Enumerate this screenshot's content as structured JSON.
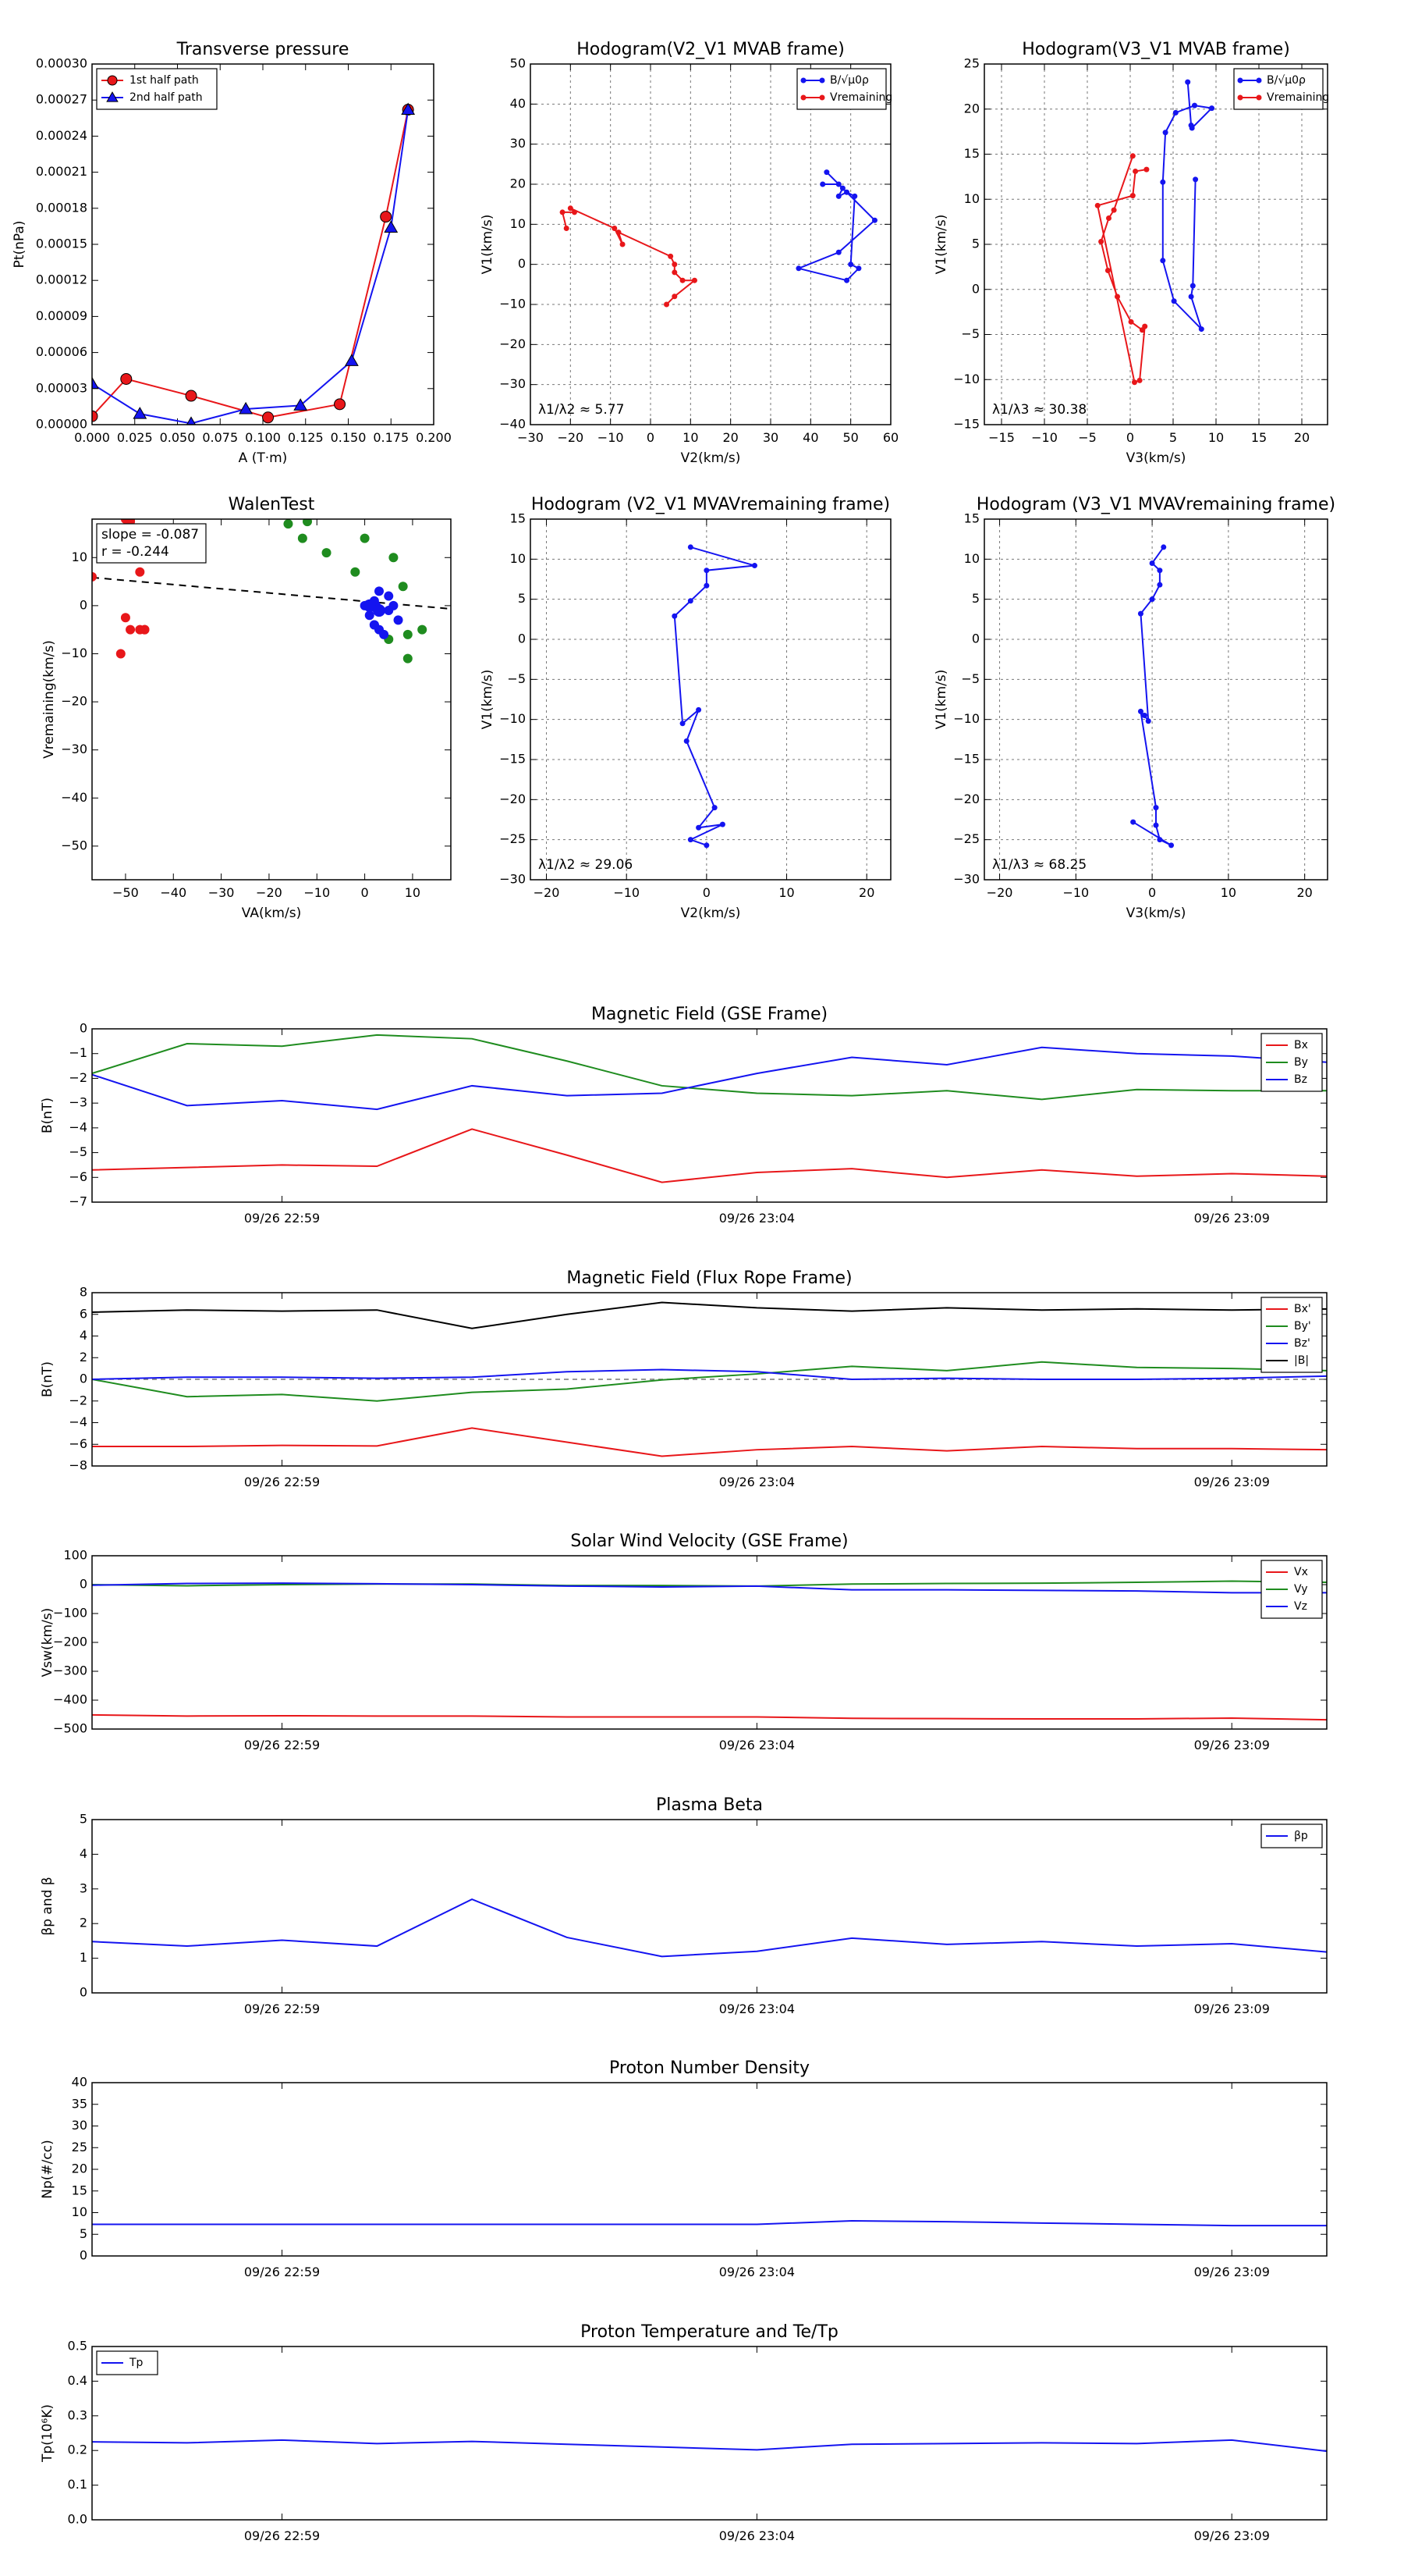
{
  "colors": {
    "red": "#e8171a",
    "green": "#1f8c1f",
    "blue": "#1414f0",
    "black": "#000000",
    "grid": "#777777"
  },
  "chart_data": [
    {
      "id": "tp",
      "type": "scatter",
      "title": "Transverse pressure",
      "xlabel": "A (T·m)",
      "ylabel": "Pt(nPa)",
      "xlim": [
        0,
        0.2
      ],
      "ylim": [
        0,
        0.0003
      ],
      "xticks": [
        "0.000",
        "0.025",
        "0.050",
        "0.075",
        "0.100",
        "0.125",
        "0.150",
        "0.175",
        "0.200"
      ],
      "yticks": [
        "0.00000",
        "0.00003",
        "0.00006",
        "0.00009",
        "0.00012",
        "0.00015",
        "0.00018",
        "0.00021",
        "0.00024",
        "0.00027",
        "0.00030"
      ],
      "legend_position": "top-left",
      "series": [
        {
          "name": "1st half path",
          "color": "#e8171a",
          "marker": "circle",
          "x": [
            0.0,
            0.02,
            0.058,
            0.103,
            0.145,
            0.172,
            0.185
          ],
          "y": [
            7e-06,
            3.8e-05,
            2.4e-05,
            6e-06,
            1.7e-05,
            0.000173,
            0.000262
          ]
        },
        {
          "name": "2nd half path",
          "color": "#1414f0",
          "marker": "triangle",
          "x": [
            0.0,
            0.028,
            0.058,
            0.09,
            0.122,
            0.152,
            0.175,
            0.185
          ],
          "y": [
            3.4e-05,
            9e-06,
            1e-06,
            1.3e-05,
            1.6e-05,
            5.3e-05,
            0.000164,
            0.000262
          ]
        }
      ]
    },
    {
      "id": "h1",
      "type": "line",
      "title": "Hodogram(V2_V1 MVAB frame)",
      "xlabel": "V2(km/s)",
      "ylabel": "V1(km/s)",
      "xlim": [
        -30,
        60
      ],
      "ylim": [
        -40,
        50
      ],
      "xticks": [
        "−30",
        "−20",
        "−10",
        "0",
        "10",
        "20",
        "30",
        "40",
        "50",
        "60"
      ],
      "yticks": [
        "−40",
        "−30",
        "−20",
        "−10",
        "0",
        "10",
        "20",
        "30",
        "40",
        "50"
      ],
      "grid": true,
      "annotation": "λ1/λ2 ≈ 5.77",
      "legend_position": "top-right",
      "series": [
        {
          "name": "B/√μ0ρ",
          "color": "#1414f0",
          "x": [
            44,
            48,
            47,
            49,
            51,
            50,
            52,
            49,
            37,
            47,
            56,
            47,
            43
          ],
          "y": [
            23,
            19,
            17,
            18,
            17,
            0,
            -1,
            -4,
            -1,
            3,
            11,
            20,
            20
          ]
        },
        {
          "name": "Vremaining",
          "color": "#e8171a",
          "x": [
            -21,
            -22,
            -19,
            -20,
            -9,
            -7,
            -8,
            5,
            6,
            6,
            8,
            11,
            6,
            4
          ],
          "y": [
            9,
            13,
            13,
            14,
            9,
            5,
            8,
            2,
            0,
            -2,
            -4,
            -4,
            -8,
            -10
          ]
        }
      ]
    },
    {
      "id": "h2",
      "type": "line",
      "title": "Hodogram(V3_V1 MVAB frame)",
      "xlabel": "V3(km/s)",
      "ylabel": "V1(km/s)",
      "xlim": [
        -17,
        23
      ],
      "ylim": [
        -15,
        25
      ],
      "xticks": [
        "−15",
        "−10",
        "−5",
        "0",
        "5",
        "10",
        "15",
        "20"
      ],
      "yticks": [
        "−15",
        "−10",
        "−5",
        "0",
        "5",
        "10",
        "15",
        "20",
        "25"
      ],
      "grid": true,
      "annotation": "λ1/λ3 ≈ 30.38",
      "legend_position": "top-right",
      "series": [
        {
          "name": "B/√μ0ρ",
          "color": "#1414f0",
          "x": [
            6.7,
            7.1,
            7.2,
            9.5,
            7.5,
            5.3,
            4.1,
            3.8,
            3.8,
            5.1,
            8.3,
            7.1,
            7.3,
            7.6
          ],
          "y": [
            23,
            18.2,
            17.9,
            20.1,
            20.4,
            19.6,
            17.4,
            11.9,
            3.2,
            -1.3,
            -4.4,
            -0.8,
            0.4,
            12.2
          ]
        },
        {
          "name": "Vremaining",
          "color": "#e8171a",
          "x": [
            0.3,
            -1.9,
            -2.5,
            -3.4,
            -2.6,
            -1.5,
            0.1,
            1.4,
            1.7,
            1.1,
            0.5,
            -3.8,
            0.3,
            0.6,
            1.9
          ],
          "y": [
            14.8,
            8.8,
            7.9,
            5.3,
            2.1,
            -0.8,
            -3.6,
            -4.5,
            -4.1,
            -10.1,
            -10.3,
            9.3,
            10.4,
            13.1,
            13.3
          ]
        }
      ]
    },
    {
      "id": "walen",
      "type": "scatter",
      "title": "WalenTest",
      "xlabel": "VA(km/s)",
      "ylabel": "Vremaining(km/s)",
      "xlim": [
        -57,
        18
      ],
      "ylim": [
        -57,
        18
      ],
      "xticks": [
        "−50",
        "−40",
        "−30",
        "−20",
        "−10",
        "0",
        "10"
      ],
      "yticks": [
        "−50",
        "−40",
        "−30",
        "−20",
        "−10",
        "0",
        "10"
      ],
      "annotation_lines": [
        "slope = -0.087",
        "r = -0.244"
      ],
      "fit_line": {
        "slope": -0.087,
        "intercept": 0.9
      },
      "series": [
        {
          "name": "",
          "color": "#e8171a",
          "x": [
            -57,
            -51,
            -50,
            -50,
            -49,
            -49,
            -47,
            -46,
            -46,
            -49,
            -47,
            -50,
            -51
          ],
          "y": [
            6,
            19,
            18.5,
            18,
            17.7,
            17.5,
            7,
            -5,
            -5,
            -5,
            -5,
            -2.5,
            -10
          ]
        },
        {
          "name": "",
          "color": "#1f8c1f",
          "x": [
            -16,
            -12,
            -11,
            -13,
            -8,
            -2,
            0,
            6,
            8,
            9,
            9,
            5,
            12
          ],
          "y": [
            17,
            17.5,
            19,
            14,
            11,
            7,
            14,
            10,
            4,
            -6,
            -11,
            -7,
            -5
          ]
        },
        {
          "name": "",
          "color": "#1414f0",
          "x": [
            0,
            1,
            2,
            3,
            5,
            6,
            7,
            2,
            3,
            4,
            1,
            2,
            3,
            5
          ],
          "y": [
            0,
            0,
            1,
            3,
            2,
            0,
            -3,
            -4,
            -5,
            -6,
            -2,
            -4,
            -1,
            -1
          ]
        },
        {
          "name": "",
          "color": "#1414f0",
          "x": [
            2,
            1,
            3
          ],
          "y": [
            0,
            0,
            -1
          ],
          "large": true
        }
      ]
    },
    {
      "id": "h3",
      "type": "line",
      "title": "Hodogram (V2_V1 MVAVremaining frame)",
      "xlabel": "V2(km/s)",
      "ylabel": "V1(km/s)",
      "xlim": [
        -22,
        23
      ],
      "ylim": [
        -30,
        15
      ],
      "xticks": [
        "−20",
        "−10",
        "0",
        "10",
        "20"
      ],
      "yticks": [
        "−30",
        "−25",
        "−20",
        "−15",
        "−10",
        "−5",
        "0",
        "5",
        "10",
        "15"
      ],
      "grid": true,
      "annotation": "λ1/λ2 ≈ 29.06",
      "series": [
        {
          "name": "",
          "color": "#1414f0",
          "x": [
            -2,
            6,
            0,
            0,
            -2,
            -4,
            -3,
            -1,
            -2.5,
            1,
            -1,
            2,
            -2,
            0
          ],
          "y": [
            11.5,
            9.2,
            8.6,
            6.7,
            4.8,
            2.9,
            -10.5,
            -8.8,
            -12.7,
            -21,
            -23.5,
            -23.1,
            -25,
            -25.7
          ]
        }
      ]
    },
    {
      "id": "h4",
      "type": "line",
      "title": "Hodogram (V3_V1 MVAVremaining frame)",
      "xlabel": "V3(km/s)",
      "ylabel": "V1(km/s)",
      "xlim": [
        -22,
        23
      ],
      "ylim": [
        -30,
        15
      ],
      "xticks": [
        "−20",
        "−10",
        "0",
        "10",
        "20"
      ],
      "yticks": [
        "−30",
        "−25",
        "−20",
        "−15",
        "−10",
        "−5",
        "0",
        "5",
        "10",
        "15"
      ],
      "grid": true,
      "annotation": "λ1/λ3 ≈ 68.25",
      "series": [
        {
          "name": "",
          "color": "#1414f0",
          "x": [
            1.5,
            0,
            1,
            1,
            0,
            -1.5,
            -0.5,
            -1,
            -1.5,
            0.5,
            0.5,
            1,
            2.5,
            -2.5
          ],
          "y": [
            11.5,
            9.5,
            8.6,
            6.8,
            5,
            3.2,
            -10.2,
            -9.5,
            -9,
            -21,
            -23.2,
            -25,
            -25.7,
            -22.8
          ]
        }
      ]
    },
    {
      "id": "ts1",
      "type": "line",
      "title": "Magnetic Field (GSE Frame)",
      "ylabel": "B(nT)",
      "ylim": [
        -7,
        0
      ],
      "yticks": [
        "−7",
        "−6",
        "−5",
        "−4",
        "−3",
        "−2",
        "−1",
        "0"
      ],
      "xticks": [
        "09/26 22:59",
        "09/26 23:04",
        "09/26 23:09"
      ],
      "xtick_pos": [
        2,
        7,
        12
      ],
      "x": [
        0,
        1,
        2,
        3,
        4,
        5,
        6,
        7,
        8,
        9,
        10,
        11,
        12,
        13
      ],
      "legend_position": "top-right",
      "series": [
        {
          "name": "Bx",
          "color": "#e8171a",
          "values": [
            -5.7,
            -5.6,
            -5.5,
            -5.55,
            -4.05,
            -5.1,
            -6.2,
            -5.8,
            -5.65,
            -6.0,
            -5.7,
            -5.95,
            -5.85,
            -5.95
          ]
        },
        {
          "name": "By",
          "color": "#1f8c1f",
          "values": [
            -1.8,
            -0.6,
            -0.7,
            -0.25,
            -0.4,
            -1.3,
            -2.3,
            -2.6,
            -2.7,
            -2.5,
            -2.85,
            -2.45,
            -2.5,
            -2.5
          ]
        },
        {
          "name": "Bz",
          "color": "#1414f0",
          "values": [
            -1.85,
            -3.1,
            -2.9,
            -3.25,
            -2.3,
            -2.7,
            -2.6,
            -1.8,
            -1.15,
            -1.45,
            -0.75,
            -1.0,
            -1.1,
            -1.35
          ]
        }
      ]
    },
    {
      "id": "ts2",
      "type": "line",
      "title": "Magnetic Field (Flux Rope Frame)",
      "ylabel": "B(nT)",
      "ylim": [
        -8,
        8
      ],
      "yticks": [
        "−8",
        "−6",
        "−4",
        "−2",
        "0",
        "2",
        "4",
        "6",
        "8"
      ],
      "xticks": [
        "09/26 22:59",
        "09/26 23:04",
        "09/26 23:09"
      ],
      "xtick_pos": [
        2,
        7,
        12
      ],
      "x": [
        0,
        1,
        2,
        3,
        4,
        5,
        6,
        7,
        8,
        9,
        10,
        11,
        12,
        13
      ],
      "zero_line": true,
      "legend_position": "top-right",
      "series": [
        {
          "name": "Bx'",
          "color": "#e8171a",
          "values": [
            -6.2,
            -6.2,
            -6.1,
            -6.15,
            -4.5,
            -5.8,
            -7.1,
            -6.5,
            -6.2,
            -6.6,
            -6.2,
            -6.4,
            -6.4,
            -6.5
          ]
        },
        {
          "name": "By'",
          "color": "#1f8c1f",
          "values": [
            0.0,
            -1.6,
            -1.4,
            -2.0,
            -1.2,
            -0.9,
            -0.05,
            0.5,
            1.2,
            0.8,
            1.6,
            1.1,
            1.0,
            0.8
          ]
        },
        {
          "name": "Bz'",
          "color": "#1414f0",
          "values": [
            0.0,
            0.2,
            0.2,
            0.1,
            0.2,
            0.7,
            0.9,
            0.7,
            0.0,
            0.1,
            0.0,
            0.0,
            0.1,
            0.3
          ]
        },
        {
          "name": "|B|",
          "color": "#000000",
          "values": [
            6.2,
            6.4,
            6.3,
            6.4,
            4.7,
            6.0,
            7.1,
            6.6,
            6.3,
            6.6,
            6.4,
            6.5,
            6.4,
            6.5
          ]
        }
      ]
    },
    {
      "id": "ts3",
      "type": "line",
      "title": "Solar Wind Velocity (GSE Frame)",
      "ylabel": "Vsw(km/s)",
      "ylim": [
        -500,
        100
      ],
      "yticks": [
        "−500",
        "−400",
        "−300",
        "−200",
        "−100",
        "0",
        "100"
      ],
      "xticks": [
        "09/26 22:59",
        "09/26 23:04",
        "09/26 23:09"
      ],
      "xtick_pos": [
        2,
        7,
        12
      ],
      "x": [
        0,
        1,
        2,
        3,
        4,
        5,
        6,
        7,
        8,
        9,
        10,
        11,
        12,
        13
      ],
      "legend_position": "top-right",
      "series": [
        {
          "name": "Vx",
          "color": "#e8171a",
          "values": [
            -451,
            -455,
            -454,
            -455,
            -455,
            -458,
            -458,
            -458,
            -463,
            -464,
            -465,
            -465,
            -462,
            -468
          ]
        },
        {
          "name": "Vy",
          "color": "#1f8c1f",
          "values": [
            0,
            -4,
            0,
            2,
            2,
            -3,
            -3,
            -5,
            2,
            4,
            5,
            8,
            12,
            8
          ]
        },
        {
          "name": "Vz",
          "color": "#1414f0",
          "values": [
            -2,
            4,
            5,
            3,
            0,
            -5,
            -8,
            -5,
            -18,
            -18,
            -20,
            -22,
            -28,
            -28
          ]
        }
      ]
    },
    {
      "id": "ts4",
      "type": "line",
      "title": "Plasma Beta",
      "ylabel": "βp and β",
      "ylim": [
        0,
        5
      ],
      "yticks": [
        "0",
        "1",
        "2",
        "3",
        "4",
        "5"
      ],
      "xticks": [
        "09/26 22:59",
        "09/26 23:04",
        "09/26 23:09"
      ],
      "xtick_pos": [
        2,
        7,
        12
      ],
      "x": [
        0,
        1,
        2,
        3,
        4,
        5,
        6,
        7,
        8,
        9,
        10,
        11,
        12,
        13
      ],
      "legend_position": "top-right",
      "series": [
        {
          "name": "βp",
          "color": "#1414f0",
          "values": [
            1.48,
            1.35,
            1.52,
            1.35,
            2.7,
            1.6,
            1.05,
            1.2,
            1.58,
            1.4,
            1.48,
            1.35,
            1.42,
            1.18
          ]
        }
      ]
    },
    {
      "id": "ts5",
      "type": "line",
      "title": "Proton Number Density",
      "ylabel": "Np(#/cc)",
      "ylim": [
        0,
        40
      ],
      "yticks": [
        "0",
        "5",
        "10",
        "15",
        "20",
        "25",
        "30",
        "35",
        "40"
      ],
      "xticks": [
        "09/26 22:59",
        "09/26 23:04",
        "09/26 23:09"
      ],
      "xtick_pos": [
        2,
        7,
        12
      ],
      "x": [
        0,
        1,
        2,
        3,
        4,
        5,
        6,
        7,
        8,
        9,
        10,
        11,
        12,
        13
      ],
      "series": [
        {
          "name": "",
          "color": "#1414f0",
          "values": [
            7.3,
            7.3,
            7.3,
            7.3,
            7.3,
            7.3,
            7.3,
            7.3,
            8.1,
            7.9,
            7.6,
            7.3,
            7.0,
            7.0
          ]
        }
      ]
    },
    {
      "id": "ts6",
      "type": "line",
      "title": "Proton Temperature and Te/Tp",
      "ylabel": "Tp(10⁶K)",
      "ylim": [
        0,
        0.5
      ],
      "yticks": [
        "0.0",
        "0.1",
        "0.2",
        "0.3",
        "0.4",
        "0.5"
      ],
      "xticks": [
        "09/26 22:59",
        "09/26 23:04",
        "09/26 23:09"
      ],
      "xtick_pos": [
        2,
        7,
        12
      ],
      "x": [
        0,
        1,
        2,
        3,
        4,
        5,
        6,
        7,
        8,
        9,
        10,
        11,
        12,
        13
      ],
      "legend_position": "top-left",
      "series": [
        {
          "name": "Tp",
          "color": "#1414f0",
          "values": [
            0.225,
            0.222,
            0.23,
            0.22,
            0.226,
            0.218,
            0.21,
            0.202,
            0.218,
            0.22,
            0.222,
            0.22,
            0.23,
            0.198
          ]
        }
      ]
    }
  ]
}
